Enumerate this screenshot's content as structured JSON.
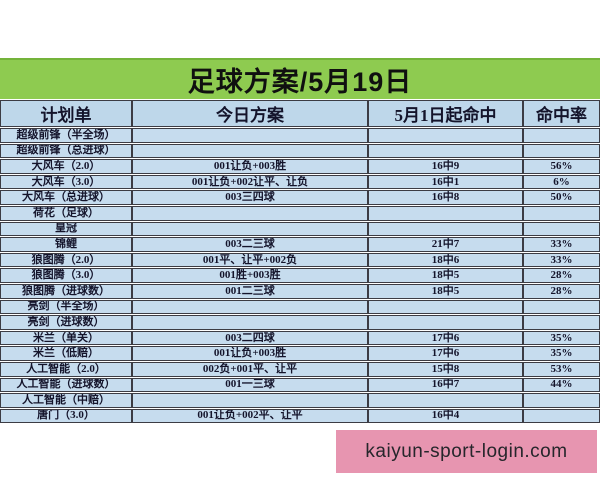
{
  "title": "足球方案/5月19日",
  "columns": [
    "计划单",
    "今日方案",
    "5月1日起命中",
    "命中率"
  ],
  "rows": [
    {
      "plan": "超级前锋（半全场）",
      "today": "",
      "hits": "",
      "rate": ""
    },
    {
      "plan": "超级前锋（总进球）",
      "today": "",
      "hits": "",
      "rate": ""
    },
    {
      "plan": "大风车（2.0）",
      "today": "001让负+003胜",
      "hits": "16中9",
      "rate": "56%"
    },
    {
      "plan": "大风车（3.0）",
      "today": "001让负+002让平、让负",
      "hits": "16中1",
      "rate": "6%"
    },
    {
      "plan": "大风车（总进球）",
      "today": "003三四球",
      "hits": "16中8",
      "rate": "50%"
    },
    {
      "plan": "荷花（足球）",
      "today": "",
      "hits": "",
      "rate": ""
    },
    {
      "plan": "皇冠",
      "today": "",
      "hits": "",
      "rate": ""
    },
    {
      "plan": "锦鲤",
      "today": "003二三球",
      "hits": "21中7",
      "rate": "33%"
    },
    {
      "plan": "狼图腾（2.0）",
      "today": "001平、让平+002负",
      "hits": "18中6",
      "rate": "33%"
    },
    {
      "plan": "狼图腾（3.0）",
      "today": "001胜+003胜",
      "hits": "18中5",
      "rate": "28%"
    },
    {
      "plan": "狼图腾（进球数）",
      "today": "001二三球",
      "hits": "18中5",
      "rate": "28%"
    },
    {
      "plan": "亮剑（半全场）",
      "today": "",
      "hits": "",
      "rate": ""
    },
    {
      "plan": "亮剑（进球数）",
      "today": "",
      "hits": "",
      "rate": ""
    },
    {
      "plan": "米兰（单关）",
      "today": "003二四球",
      "hits": "17中6",
      "rate": "35%"
    },
    {
      "plan": "米兰（低赔）",
      "today": "001让负+003胜",
      "hits": "17中6",
      "rate": "35%"
    },
    {
      "plan": "人工智能（2.0）",
      "today": "002负+001平、让平",
      "hits": "15中8",
      "rate": "53%"
    },
    {
      "plan": "人工智能（进球数）",
      "today": "001一三球",
      "hits": "16中7",
      "rate": "44%"
    },
    {
      "plan": "人工智能（中赔）",
      "today": "",
      "hits": "",
      "rate": ""
    },
    {
      "plan": "唐门（3.0）",
      "today": "001让负+002平、让平",
      "hits": "16中4",
      "rate": ""
    }
  ],
  "footer": {
    "watermark": "kaiyun-sport-login.com"
  },
  "colors": {
    "banner_green": "#8ecb50",
    "banner_green_dark": "#74b33a",
    "cell_blue": "#c6dcee",
    "header_blue": "#bed7ea",
    "pink": "#e795b0"
  }
}
